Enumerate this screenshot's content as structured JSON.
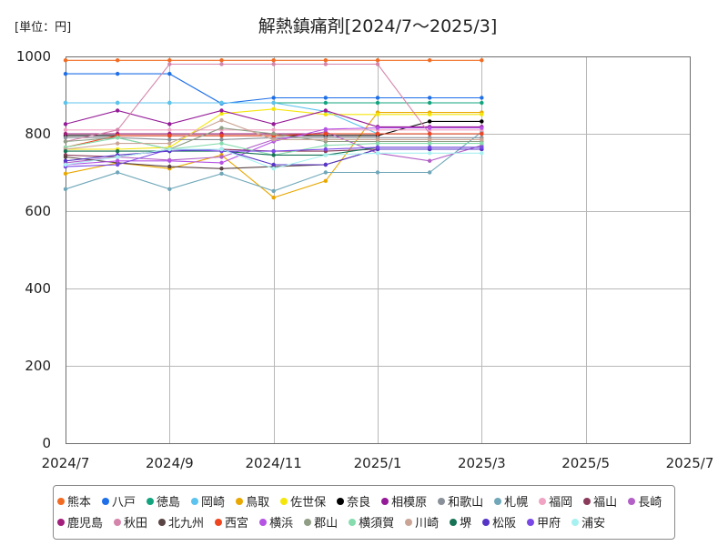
{
  "chart_data": {
    "type": "line",
    "title": "解熱鎮痛剤[2024/7～2025/3]",
    "unit": "[単位：円]",
    "xlabel": "",
    "ylabel": "",
    "xlim": [
      "2024/7",
      "2025/7"
    ],
    "ylim": [
      0,
      1000
    ],
    "xticks": [
      "2024/7",
      "2024/9",
      "2024/11",
      "2025/1",
      "2025/3",
      "2025/5",
      "2025/7"
    ],
    "yticks": [
      0,
      200,
      400,
      600,
      800,
      1000
    ],
    "grid": true,
    "legend_position": "bottom",
    "x": [
      "2024/7",
      "2024/8",
      "2024/9",
      "2024/10",
      "2024/11",
      "2024/12",
      "2025/1",
      "2025/2",
      "2025/3"
    ],
    "series": [
      {
        "name": "熊本",
        "color": "#f26b22",
        "values": [
          990,
          990,
          990,
          990,
          990,
          990,
          990,
          990,
          990
        ]
      },
      {
        "name": "八戸",
        "color": "#1e6fe8",
        "values": [
          955,
          955,
          955,
          878,
          893,
          893,
          893,
          893,
          893
        ]
      },
      {
        "name": "徳島",
        "color": "#12a47e",
        "values": [
          880,
          880,
          880,
          880,
          880,
          880,
          880,
          880,
          880
        ]
      },
      {
        "name": "岡崎",
        "color": "#5cc3ee",
        "values": [
          880,
          880,
          880,
          880,
          880,
          858,
          800,
          800,
          800
        ]
      },
      {
        "name": "鳥取",
        "color": "#e9a800",
        "values": [
          697,
          725,
          710,
          745,
          635,
          678,
          855,
          855,
          855
        ]
      },
      {
        "name": "佐世保",
        "color": "#f5e60a",
        "values": [
          760,
          760,
          765,
          852,
          864,
          850,
          850,
          850,
          850
        ]
      },
      {
        "name": "奈良",
        "color": "#000000",
        "values": [
          795,
          795,
          795,
          795,
          795,
          795,
          795,
          832,
          832
        ]
      },
      {
        "name": "相模原",
        "color": "#951a98",
        "values": [
          825,
          860,
          825,
          860,
          825,
          860,
          818,
          818,
          818
        ]
      },
      {
        "name": "和歌山",
        "color": "#8a9099",
        "values": [
          790,
          790,
          785,
          785,
          790,
          790,
          790,
          790,
          790
        ]
      },
      {
        "name": "札幌",
        "color": "#6fa7b9",
        "values": [
          657,
          700,
          657,
          697,
          652,
          700,
          700,
          700,
          805
        ]
      },
      {
        "name": "福岡",
        "color": "#f0a3c3",
        "values": [
          810,
          810,
          810,
          810,
          810,
          810,
          810,
          810,
          810
        ]
      },
      {
        "name": "福山",
        "color": "#8a3b5a",
        "values": [
          745,
          740,
          760,
          760,
          755,
          755,
          760,
          760,
          760
        ]
      },
      {
        "name": "長崎",
        "color": "#b25fc6",
        "values": [
          725,
          740,
          732,
          740,
          785,
          805,
          750,
          730,
          770
        ]
      },
      {
        "name": "鹿児島",
        "color": "#a21f7c",
        "values": [
          800,
          800,
          800,
          800,
          800,
          800,
          800,
          800,
          800
        ]
      },
      {
        "name": "秋田",
        "color": "#d585ab",
        "values": [
          780,
          810,
          980,
          980,
          980,
          980,
          980,
          800,
          800
        ]
      },
      {
        "name": "北九州",
        "color": "#5a4444",
        "values": [
          740,
          725,
          715,
          710,
          715,
          720,
          760,
          760,
          760
        ]
      },
      {
        "name": "西宮",
        "color": "#ef461f",
        "values": [
          765,
          795,
          795,
          795,
          795,
          800,
          800,
          800,
          800
        ]
      },
      {
        "name": "横浜",
        "color": "#b553e4",
        "values": [
          720,
          730,
          730,
          725,
          780,
          812,
          815,
          815,
          815
        ]
      },
      {
        "name": "郡山",
        "color": "#8f9e84",
        "values": [
          780,
          790,
          760,
          815,
          800,
          780,
          780,
          780,
          780
        ]
      },
      {
        "name": "横須賀",
        "color": "#86dcae",
        "values": [
          765,
          790,
          760,
          775,
          745,
          770,
          775,
          775,
          775
        ]
      },
      {
        "name": "川崎",
        "color": "#caa596",
        "values": [
          760,
          775,
          775,
          835,
          785,
          785,
          785,
          785,
          785
        ]
      },
      {
        "name": "堺",
        "color": "#177356",
        "values": [
          755,
          755,
          755,
          755,
          745,
          745,
          765,
          765,
          765
        ]
      },
      {
        "name": "松阪",
        "color": "#5634c6",
        "values": [
          730,
          745,
          755,
          760,
          720,
          720,
          760,
          760,
          760
        ]
      },
      {
        "name": "甲府",
        "color": "#7a48e6",
        "values": [
          715,
          720,
          760,
          755,
          755,
          760,
          765,
          765,
          765
        ]
      },
      {
        "name": "浦安",
        "color": "#a8f1f1",
        "values": [
          720,
          740,
          760,
          760,
          710,
          745,
          750,
          750,
          750
        ]
      }
    ]
  }
}
